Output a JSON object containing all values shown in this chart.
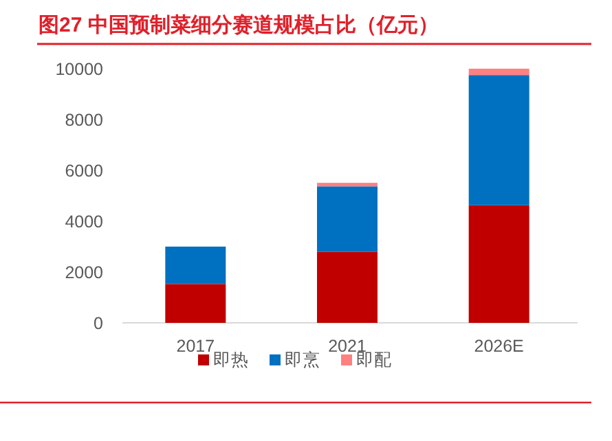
{
  "chart_data": {
    "type": "bar",
    "title": "图27  中国预制菜细分赛道规模占比（亿元）",
    "categories": [
      "2017",
      "2021",
      "2026E"
    ],
    "stacked": true,
    "series": [
      {
        "name": "即热",
        "color": "#c00000",
        "values": [
          1530,
          2790,
          4630
        ]
      },
      {
        "name": "即烹",
        "color": "#0070c0",
        "values": [
          1470,
          2580,
          5120
        ]
      },
      {
        "name": "即配",
        "color": "#ff8080",
        "values": [
          0,
          140,
          250
        ]
      }
    ],
    "ylim": [
      0,
      10000
    ],
    "yticks": [
      0,
      2000,
      4000,
      6000,
      8000,
      10000
    ],
    "grid": false,
    "legend": "bottom"
  }
}
